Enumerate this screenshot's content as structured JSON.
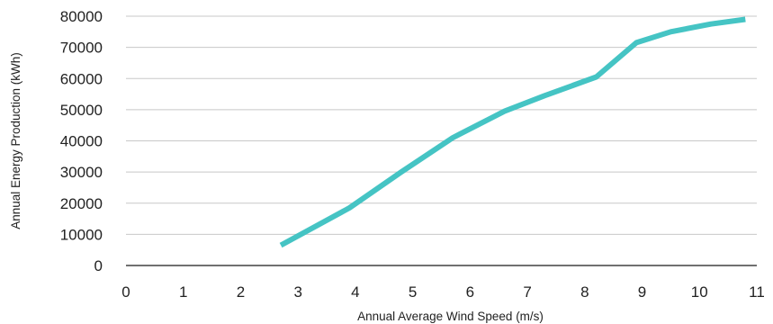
{
  "chart_data": {
    "type": "line",
    "title": "",
    "xlabel": "Annual Average Wind Speed (m/s)",
    "ylabel": "Annual Energy Production (kWh)",
    "xlim": [
      0,
      11
    ],
    "ylim": [
      0,
      80000
    ],
    "x_ticks": [
      "0",
      "1",
      "2",
      "3",
      "4",
      "5",
      "6",
      "7",
      "8",
      "9",
      "10",
      "11"
    ],
    "y_ticks": [
      "0",
      "10000",
      "20000",
      "30000",
      "40000",
      "50000",
      "60000",
      "70000",
      "80000"
    ],
    "grid": true,
    "legend": "none",
    "series": [
      {
        "color": "#45c4c4",
        "x": [
          2.7,
          3.9,
          4.8,
          5.7,
          6.6,
          7.3,
          8.2,
          8.9,
          9.5,
          10.2,
          10.8
        ],
        "y": [
          6500,
          18500,
          30000,
          41000,
          49500,
          54500,
          60500,
          71500,
          75000,
          77500,
          79000
        ]
      }
    ]
  }
}
